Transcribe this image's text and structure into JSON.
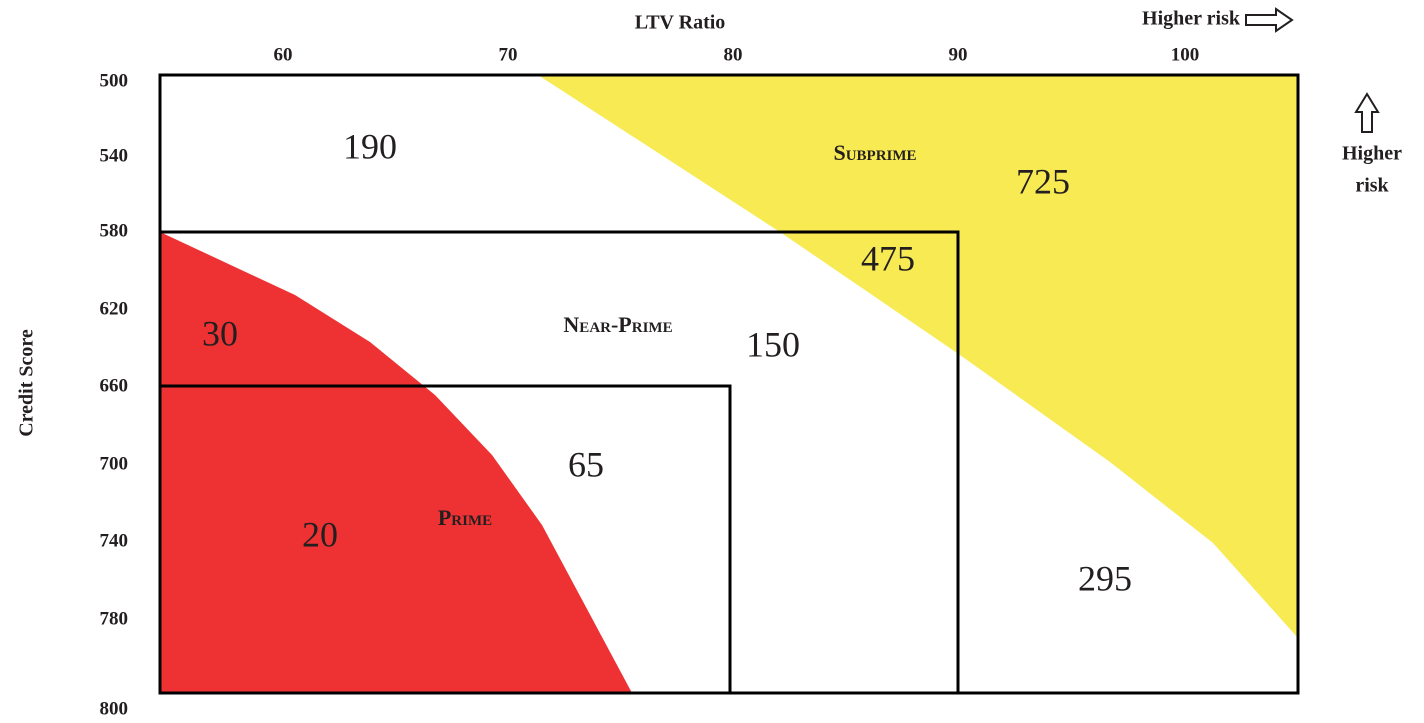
{
  "header": {
    "x_axis_title": "LTV Ratio",
    "x_risk_label": "Higher risk",
    "y_axis_title": "Credit Score",
    "y_risk_label": [
      "Higher",
      "risk"
    ]
  },
  "x_axis": {
    "labels": [
      "60",
      "70",
      "80",
      "90",
      "100"
    ]
  },
  "y_axis": {
    "labels": [
      "500",
      "540",
      "580",
      "620",
      "660",
      "700",
      "740",
      "780",
      "800"
    ]
  },
  "regions": [
    {
      "label": "Subprime"
    },
    {
      "label": "Near-Prime"
    },
    {
      "label": "Prime"
    }
  ],
  "values": [
    "190",
    "725",
    "475",
    "30",
    "150",
    "65",
    "20",
    "295"
  ]
}
